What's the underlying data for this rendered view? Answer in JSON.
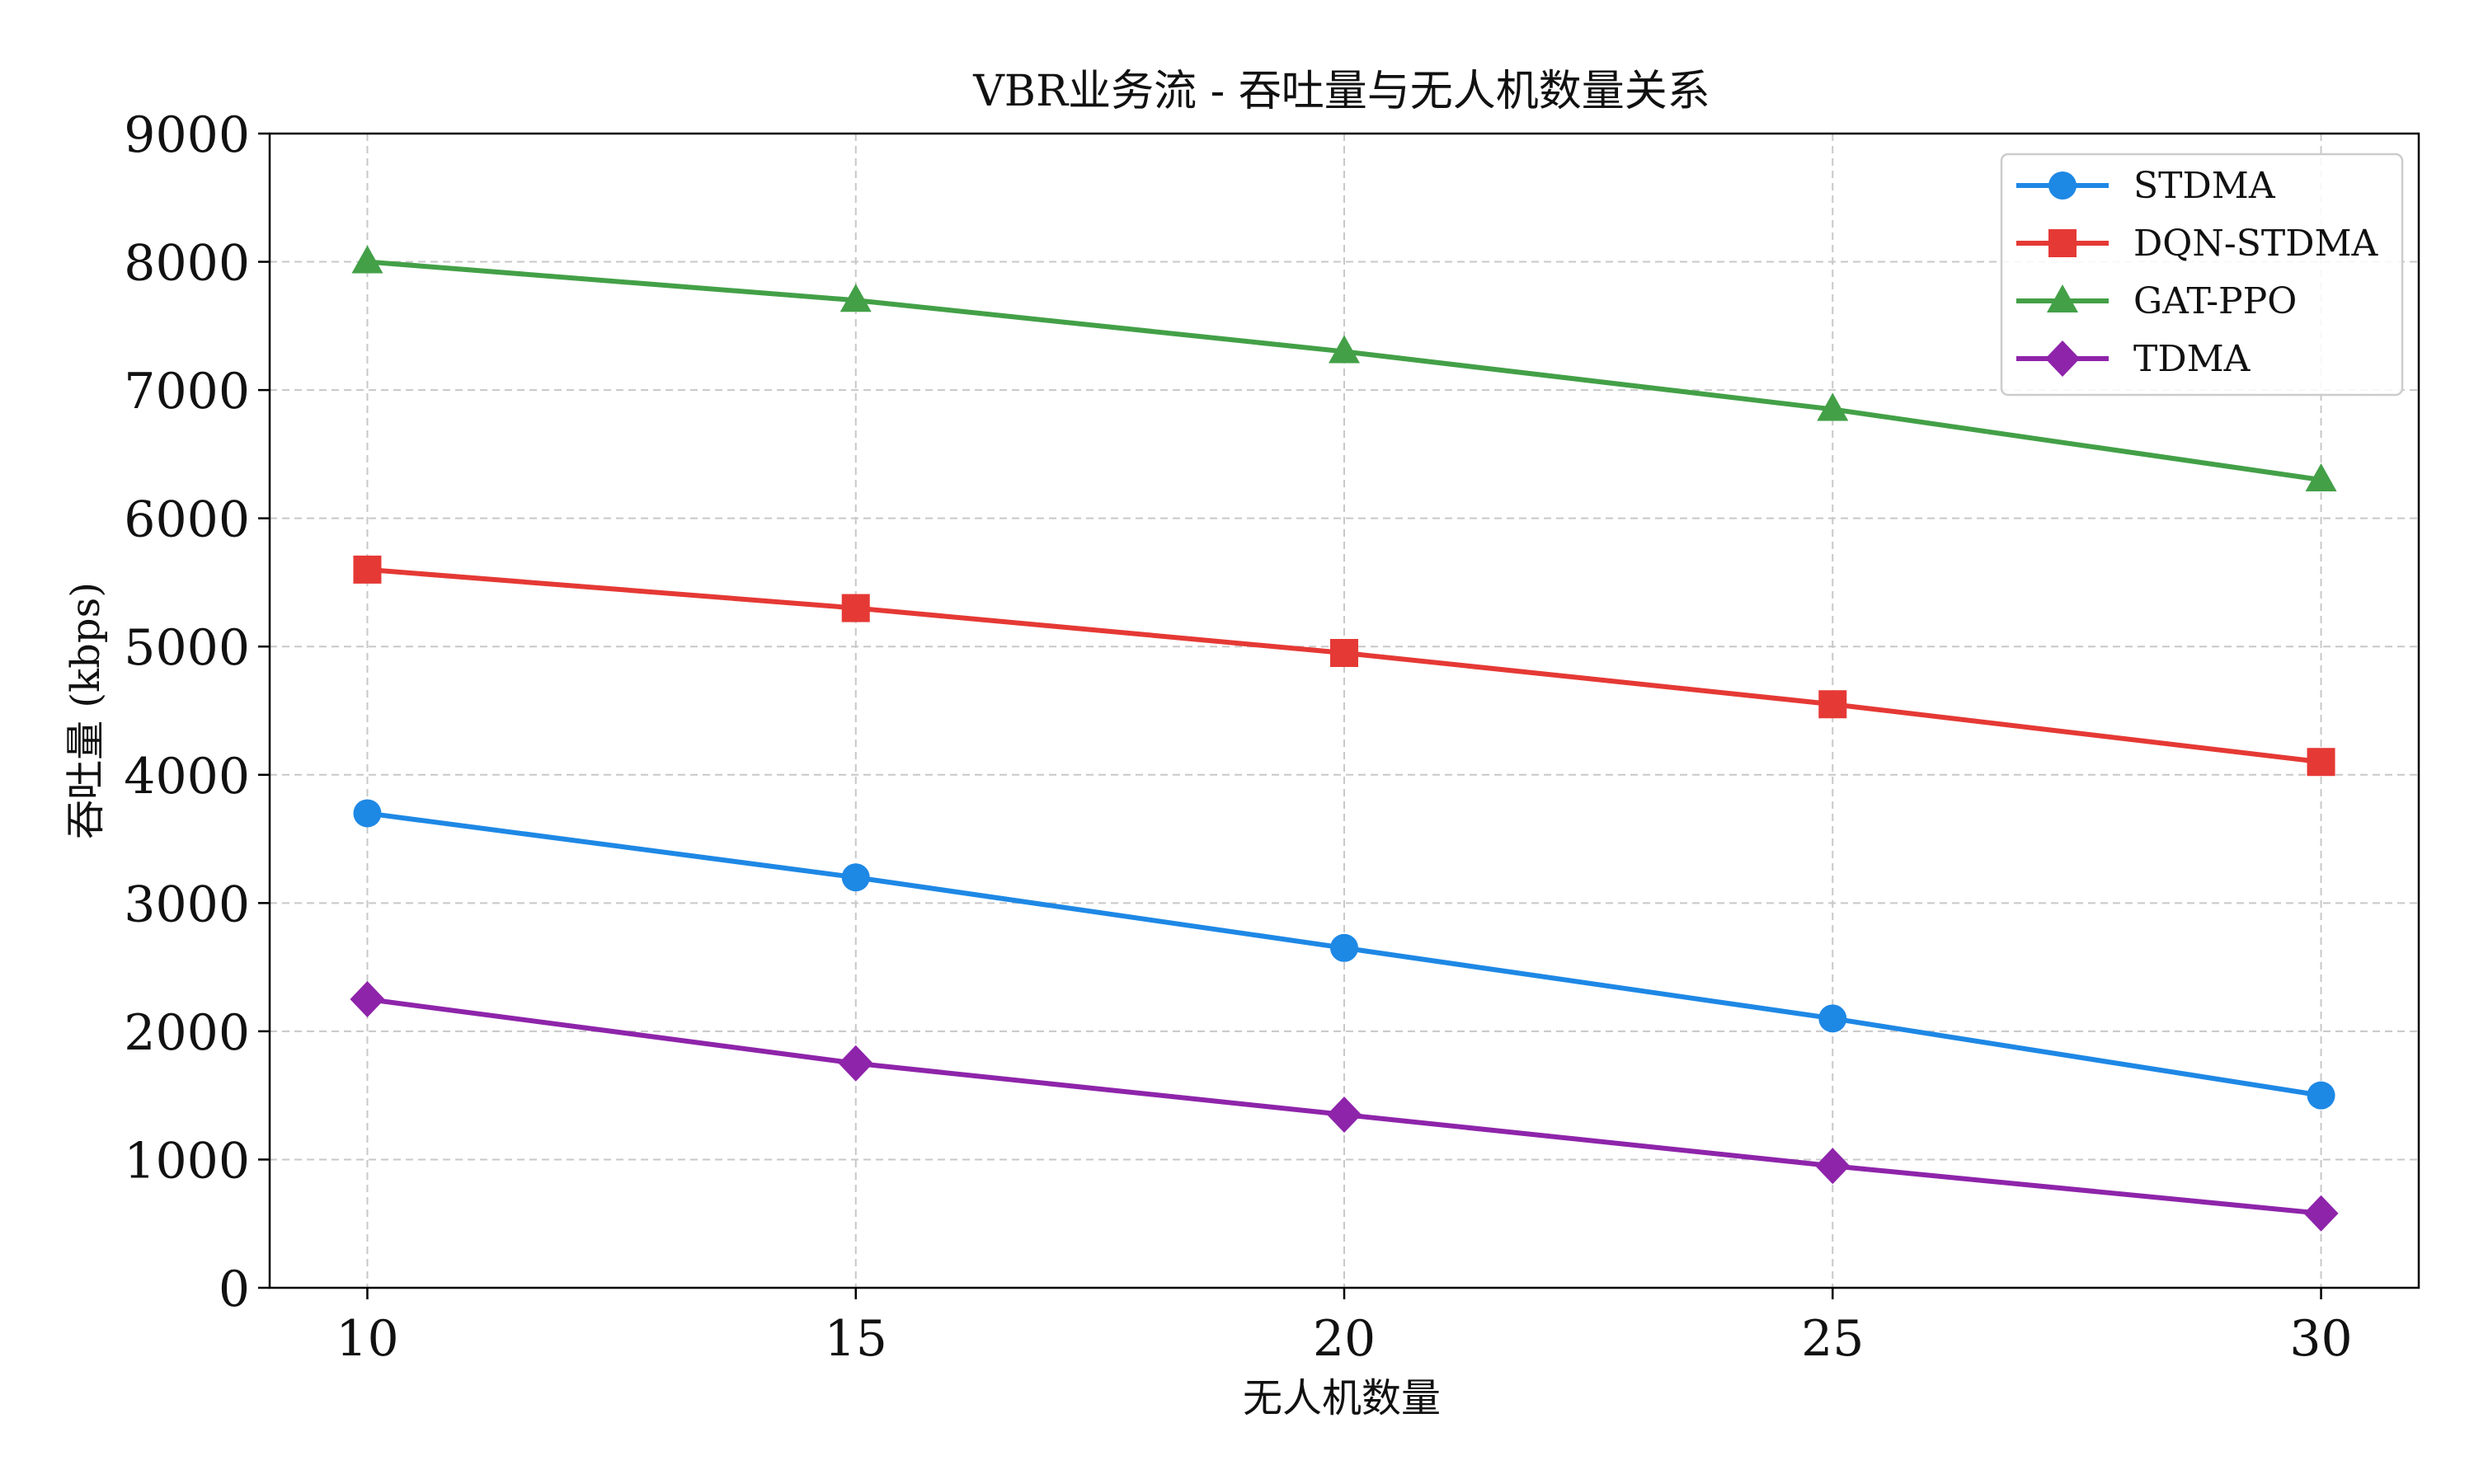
{
  "chart_data": {
    "type": "line",
    "title": "VBR业务流 - 吞吐量与无人机数量关系",
    "xlabel": "无人机数量",
    "ylabel": "吞吐量 (kbps)",
    "x": [
      10,
      15,
      20,
      25,
      30
    ],
    "x_ticks": [
      "10",
      "15",
      "20",
      "25",
      "30"
    ],
    "xlim": [
      9,
      31
    ],
    "y_ticks": [
      "0",
      "1000",
      "2000",
      "3000",
      "4000",
      "5000",
      "6000",
      "7000",
      "8000",
      "9000"
    ],
    "ylim": [
      0,
      9000
    ],
    "grid": true,
    "legend_position": "top-right",
    "series": [
      {
        "name": "STDMA",
        "color": "#1e88e5",
        "marker": "circle",
        "values": [
          3700,
          3200,
          2650,
          2100,
          1500
        ]
      },
      {
        "name": "DQN-STDMA",
        "color": "#e53935",
        "marker": "square",
        "values": [
          5600,
          5300,
          4950,
          4550,
          4100
        ]
      },
      {
        "name": "GAT-PPO",
        "color": "#43a047",
        "marker": "triangle",
        "values": [
          8000,
          7700,
          7300,
          6850,
          6300
        ]
      },
      {
        "name": "TDMA",
        "color": "#8e24aa",
        "marker": "diamond",
        "values": [
          2250,
          1750,
          1350,
          950,
          580
        ]
      }
    ]
  }
}
